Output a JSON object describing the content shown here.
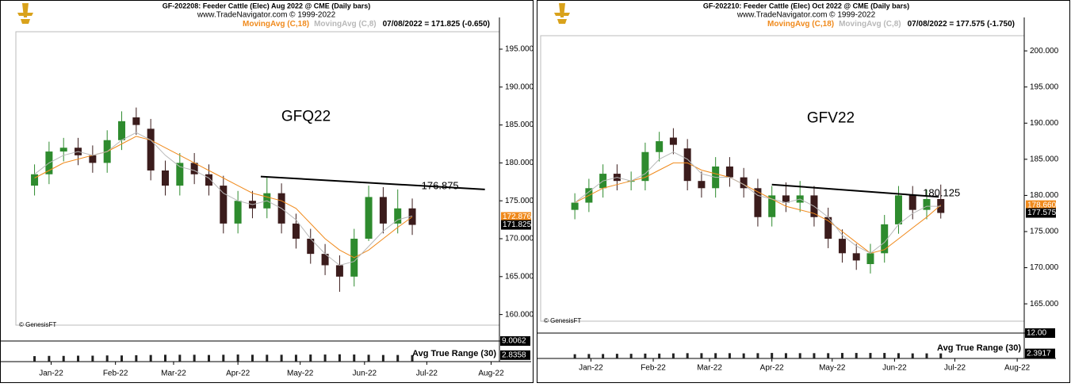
{
  "chart_data": [
    {
      "type": "candlestick",
      "title": "GF-202208: Feeder Cattle (Elec) Aug 2022 @ CME (Daily bars)",
      "subtitle": "www.TradeNavigator.com © 1999-2022",
      "status": "07/08/2022 = 171.825 (-0.650)",
      "symbol": "GFQ22",
      "watermark": "© GenesisFT",
      "up_color": "#2e8b2e",
      "down_color": "#3b1c1c",
      "x": [
        7,
        14,
        21,
        28,
        35,
        42,
        49,
        56,
        63,
        70,
        77,
        84,
        91,
        98,
        105,
        112,
        119,
        126,
        133,
        140,
        147,
        154,
        161,
        168,
        175,
        182,
        189
      ],
      "open": [
        177,
        178.5,
        181.5,
        182,
        181,
        180,
        183,
        186,
        184.5,
        179,
        177,
        180,
        178.5,
        177,
        172,
        175,
        174,
        176,
        172,
        170,
        168,
        166.5,
        165,
        170,
        175.5,
        172,
        174
      ],
      "high": [
        179.8,
        182.8,
        183.3,
        183.3,
        182.3,
        184.3,
        186.8,
        187.3,
        185.8,
        180.3,
        181.3,
        181.3,
        179.8,
        178.3,
        176.3,
        176.3,
        178.2,
        177.3,
        173.3,
        171.3,
        169.3,
        167.8,
        171.3,
        177,
        176.8,
        176.5,
        175.3
      ],
      "low": [
        175.7,
        177.2,
        180.2,
        179.7,
        178.7,
        178.7,
        181.7,
        183.7,
        177.7,
        175.7,
        175.7,
        177.2,
        175.7,
        170.7,
        170.7,
        172.7,
        172.7,
        170.7,
        168.7,
        166.7,
        165.2,
        163,
        163.7,
        169.7,
        170.7,
        170.7,
        170.5
      ],
      "close": [
        178.5,
        181.5,
        182,
        181,
        180,
        183,
        185.5,
        185,
        179,
        177,
        180,
        178.5,
        177,
        172,
        175,
        174,
        176,
        172,
        170,
        168,
        166.5,
        165,
        170,
        175.5,
        172,
        174,
        171.825
      ],
      "series": [
        {
          "name": "MovingAvg (C,18)",
          "color": "#f08a1c",
          "last_label": "172.876",
          "values": [
            178,
            179,
            180,
            180.5,
            181,
            181.5,
            182.5,
            183.5,
            183,
            182,
            181,
            180,
            179,
            178,
            177,
            176,
            175.5,
            175,
            174,
            172,
            170,
            168.5,
            167.5,
            168.5,
            170,
            171.5,
            172.876
          ]
        },
        {
          "name": "MovingAvg (C,8)",
          "color": "#b8b8b8",
          "values": [
            178.5,
            180,
            181,
            181.5,
            181,
            181.5,
            183,
            184,
            183,
            181,
            179.5,
            179,
            178,
            176,
            175,
            174.5,
            175,
            174,
            172.5,
            170,
            168,
            166.5,
            167,
            169,
            171,
            172.5,
            173
          ]
        }
      ],
      "trendline": {
        "x": [
          116,
          224
        ],
        "y": [
          178.2,
          176.5
        ],
        "label": "176.875"
      },
      "xlim": [
        -2,
        231
      ],
      "xticks": [
        {
          "value": 15,
          "label": "Jan-22"
        },
        {
          "value": 46,
          "label": "Feb-22"
        },
        {
          "value": 74,
          "label": "Mar-22"
        },
        {
          "value": 105,
          "label": "Apr-22"
        },
        {
          "value": 135,
          "label": "May-22"
        },
        {
          "value": 166,
          "label": "Jun-22"
        },
        {
          "value": 196,
          "label": "Jul-22"
        },
        {
          "value": 227,
          "label": "Aug-22"
        }
      ],
      "ylim": [
        158.6,
        197.3
      ],
      "yticks": [
        {
          "value": 160,
          "label": "160.000"
        },
        {
          "value": 165,
          "label": "165.000"
        },
        {
          "value": 170,
          "label": "170.000"
        },
        {
          "value": 175,
          "label": "175.000"
        },
        {
          "value": 180,
          "label": "180.000"
        },
        {
          "value": 185,
          "label": "185.000"
        },
        {
          "value": 190,
          "label": "190.000"
        },
        {
          "value": 195,
          "label": "195.000"
        }
      ],
      "atr": {
        "name": "Avg True Range (30)",
        "color": "#222222",
        "ylim": [
          0,
          9.0062
        ],
        "yticks": [
          9.0062
        ],
        "values": [
          2.4,
          2.5,
          2.5,
          2.6,
          2.6,
          2.7,
          2.7,
          2.8,
          2.9,
          3,
          3,
          3,
          2.9,
          3,
          3.1,
          3,
          3,
          3,
          3,
          3.1,
          3.1,
          3.2,
          3.1,
          3,
          2.9,
          2.9,
          2.8358
        ]
      }
    },
    {
      "type": "candlestick",
      "title": "GF-202210: Feeder Cattle (Elec) Oct 2022 @ CME (Daily bars)",
      "subtitle": "www.TradeNavigator.com © 1999-2022",
      "status": "07/08/2022 = 177.575 (-1.750)",
      "symbol": "GFV22",
      "watermark": "© GenesisFT",
      "up_color": "#2e8b2e",
      "down_color": "#3b1c1c",
      "x": [
        7,
        14,
        21,
        28,
        35,
        42,
        49,
        56,
        63,
        70,
        77,
        84,
        91,
        98,
        105,
        112,
        119,
        126,
        133,
        140,
        147,
        154,
        161,
        168,
        175,
        182,
        189
      ],
      "open": [
        178,
        179,
        181,
        183,
        182,
        182,
        186,
        188,
        186.5,
        182,
        181,
        184,
        182.5,
        181,
        177,
        180,
        179,
        180,
        177,
        174,
        172,
        170.5,
        172,
        176,
        180,
        178,
        179.5
      ],
      "high": [
        180.3,
        182.3,
        184.3,
        184.3,
        183.3,
        187.3,
        188.8,
        189.3,
        187.8,
        183.3,
        185.3,
        185.3,
        183.8,
        182.3,
        181.3,
        181.8,
        182,
        181.3,
        178.3,
        175.3,
        173.3,
        173.3,
        177.3,
        181.3,
        181.3,
        180.8,
        181.5
      ],
      "low": [
        176.7,
        177.7,
        179.7,
        180.7,
        180.7,
        180.7,
        184.7,
        185.7,
        180.7,
        179.7,
        179.7,
        181.2,
        179.7,
        175.7,
        175.7,
        177.7,
        177.7,
        175.7,
        172.7,
        170.7,
        169.7,
        169.2,
        170.7,
        174.7,
        176.7,
        176.7,
        176.8
      ],
      "close": [
        179,
        181,
        183,
        182,
        182,
        186,
        187.5,
        187,
        182,
        181,
        184,
        182.5,
        181,
        177,
        180,
        179,
        180,
        177,
        174,
        172,
        171,
        172,
        176,
        180,
        178,
        179.5,
        177.575
      ],
      "series": [
        {
          "name": "MovingAvg (C,18)",
          "color": "#f08a1c",
          "last_label": "178.660",
          "values": [
            179,
            180,
            181,
            181.5,
            182,
            182.5,
            183.5,
            184.5,
            184.5,
            183.5,
            183,
            182.5,
            181.5,
            180.5,
            179.5,
            178.5,
            178,
            177.5,
            176.5,
            175,
            173.5,
            172,
            172.5,
            174,
            175.5,
            177,
            178.66
          ]
        },
        {
          "name": "MovingAvg (C,8)",
          "color": "#b8b8b8",
          "values": [
            179,
            180.5,
            182,
            182.5,
            182,
            183,
            185,
            186,
            185,
            183,
            182.5,
            182.5,
            181.5,
            180,
            179.5,
            179,
            179.5,
            178.5,
            177,
            174.5,
            173,
            172,
            173.5,
            176,
            177.5,
            178.5,
            178.5
          ]
        }
      ],
      "trendline": {
        "x": [
          105,
          188
        ],
        "y": [
          181.5,
          179.8
        ],
        "label": "180.125"
      },
      "xlim": [
        -10,
        230.5
      ],
      "xticks": [
        {
          "value": 15,
          "label": "Jan-22"
        },
        {
          "value": 46,
          "label": "Feb-22"
        },
        {
          "value": 74,
          "label": "Mar-22"
        },
        {
          "value": 105,
          "label": "Apr-22"
        },
        {
          "value": 135,
          "label": "May-22"
        },
        {
          "value": 166,
          "label": "Jun-22"
        },
        {
          "value": 196,
          "label": "Jul-22"
        },
        {
          "value": 227,
          "label": "Aug-22"
        }
      ],
      "ylim": [
        162.6,
        202.1
      ],
      "yticks": [
        {
          "value": 165,
          "label": "165.000"
        },
        {
          "value": 170,
          "label": "170.000"
        },
        {
          "value": 175,
          "label": "175.000"
        },
        {
          "value": 180,
          "label": "180.000"
        },
        {
          "value": 185,
          "label": "185.000"
        },
        {
          "value": 190,
          "label": "190.000"
        },
        {
          "value": 195,
          "label": "195.000"
        },
        {
          "value": 200,
          "label": "200.000"
        }
      ],
      "atr": {
        "name": "Avg True Range (30)",
        "color": "#222222",
        "ylim": [
          0,
          12
        ],
        "yticks": [
          {
            "value": 12,
            "label": "12.00"
          }
        ],
        "values": [
          2,
          2.1,
          2.1,
          2.2,
          2.2,
          2.3,
          2.3,
          2.4,
          2.5,
          2.5,
          2.5,
          2.5,
          2.4,
          2.5,
          2.6,
          2.5,
          2.5,
          2.5,
          2.5,
          2.6,
          2.6,
          2.6,
          2.6,
          2.5,
          2.4,
          2.4,
          2.3917
        ]
      }
    }
  ]
}
